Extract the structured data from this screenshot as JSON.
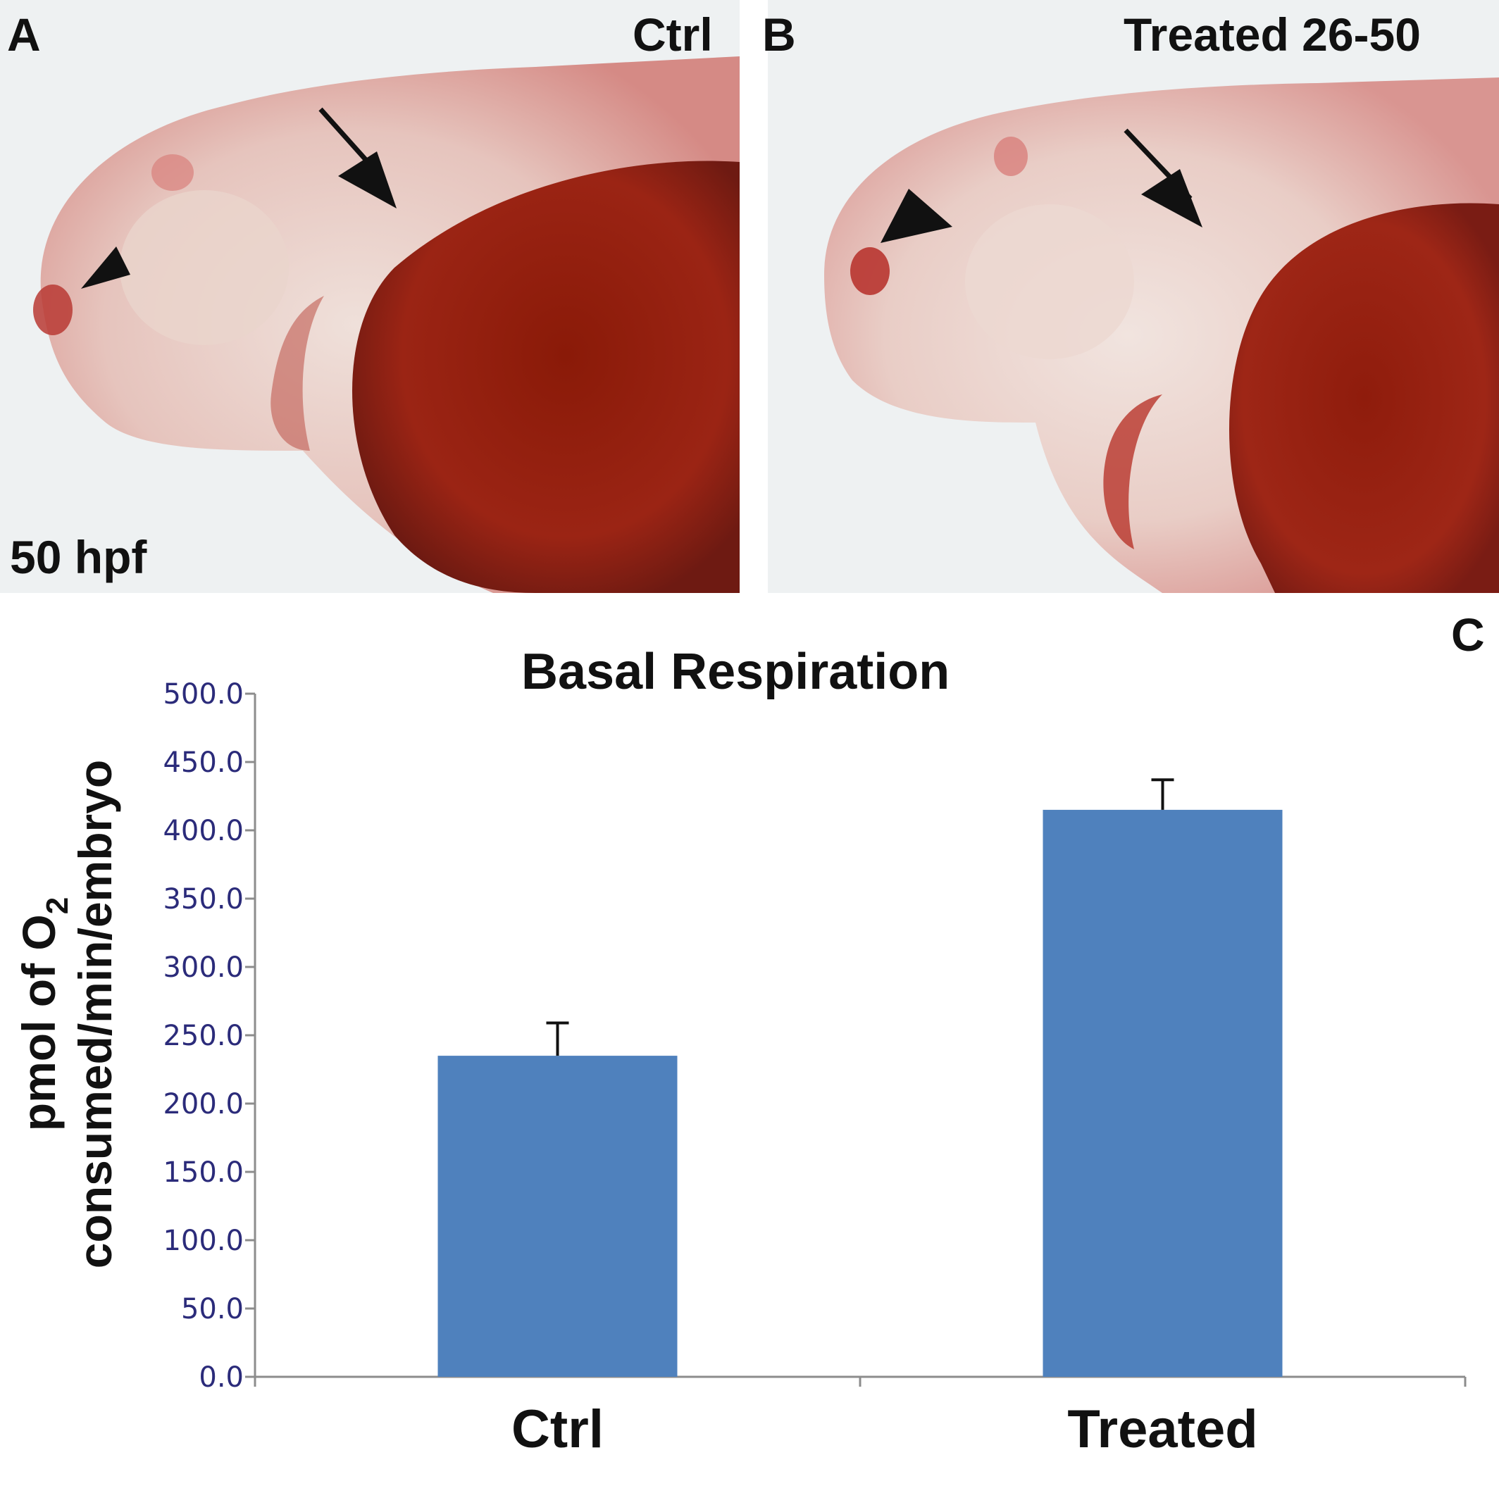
{
  "panels": {
    "a": {
      "letter": "A",
      "group": "Ctrl",
      "stage": "50 hpf"
    },
    "b": {
      "letter": "B",
      "group": "Treated 26-50"
    },
    "c": {
      "letter": "C"
    }
  },
  "colors": {
    "bar": "#4f81bd",
    "tick_text": "#2b2b7a",
    "axis": "#8c8c8c",
    "stain": "#a32a1c"
  },
  "chart_data": {
    "type": "bar",
    "title": "Basal Respiration",
    "ylabel_line1": "pmol of O",
    "ylabel_subscript": "2",
    "ylabel_line2": "consumed/min/embryo",
    "xlabel": "",
    "categories": [
      "Ctrl",
      "Treated"
    ],
    "values": [
      235,
      415
    ],
    "errors": [
      24,
      22
    ],
    "ylim": [
      0,
      500
    ],
    "ytick_step": 50,
    "ytick_labels": [
      "0.0",
      "50.0",
      "100.0",
      "150.0",
      "200.0",
      "250.0",
      "300.0",
      "350.0",
      "400.0",
      "450.0",
      "500.0"
    ],
    "grid": false,
    "legend": "none"
  }
}
